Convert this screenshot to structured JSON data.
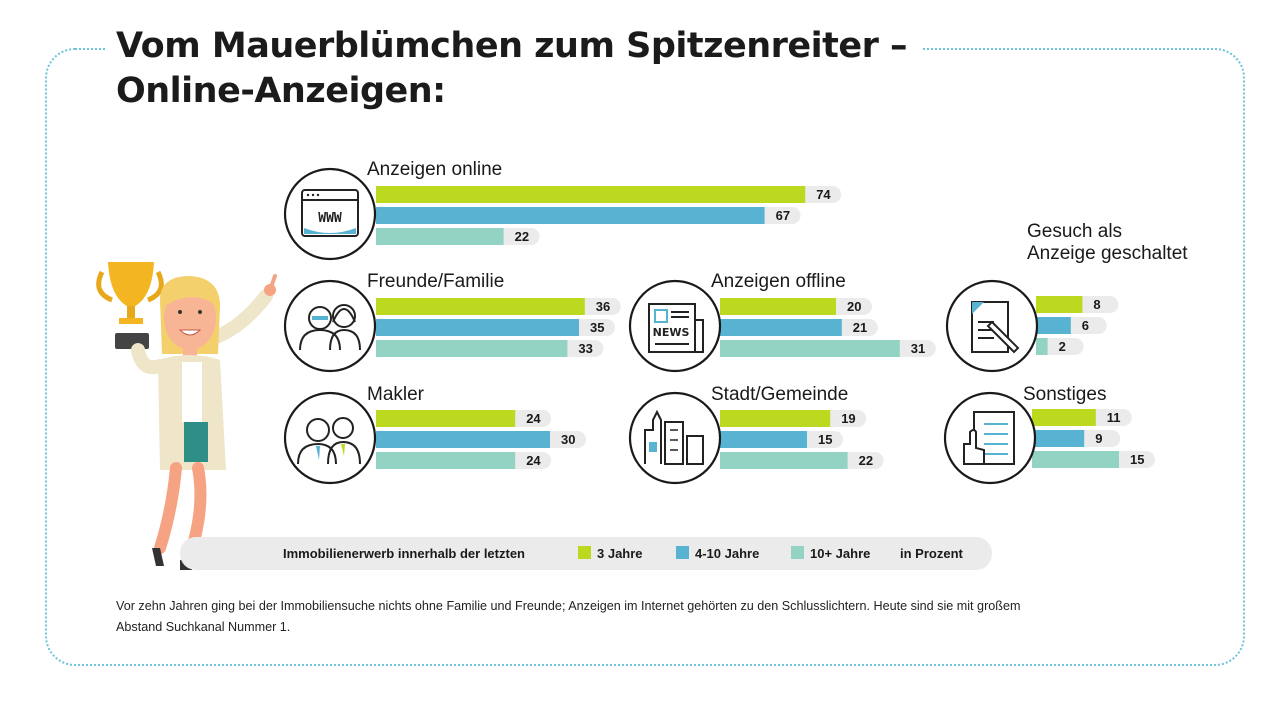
{
  "title_line1": "Vom Mauerblümchen zum Spitzenreiter –",
  "title_line2": "Online-Anzeigen:",
  "footnote_line1": "Vor zehn Jahren ging bei der Immobiliensuche nichts ohne Familie und Freunde; Anzeigen im Internet gehörten zu den Schlusslichtern. Heute sind sie mit großem",
  "footnote_line2": "Abstand Suchkanal Nummer 1.",
  "legend": {
    "intro": "Immobilienerwerb innerhalb der letzten",
    "unit": "in Prozent"
  },
  "colors": {
    "series_3": "#bcd81f",
    "series_4_10": "#58b2d2",
    "series_10plus": "#92d3c3",
    "track": "#ebebeb",
    "frame": "#6fc3d9"
  },
  "chart_data": {
    "type": "bar",
    "series": [
      {
        "name": "3 Jahre",
        "color": "#bcd81f"
      },
      {
        "name": "4-10 Jahre",
        "color": "#58b2d2"
      },
      {
        "name": "10+ Jahre",
        "color": "#92d3c3"
      }
    ],
    "categories": [
      {
        "label": "Anzeigen online",
        "values": [
          74,
          67,
          22
        ],
        "icon": "www-browser-icon"
      },
      {
        "label": "Freunde/Familie",
        "values": [
          36,
          35,
          33
        ],
        "icon": "friends-family-icon"
      },
      {
        "label": "Anzeigen offline",
        "values": [
          20,
          21,
          31
        ],
        "icon": "newspaper-icon"
      },
      {
        "label": "Gesuch als\nAnzeige geschaltet",
        "values": [
          8,
          6,
          2
        ],
        "icon": "document-pen-icon"
      },
      {
        "label": "Makler",
        "values": [
          24,
          30,
          24
        ],
        "icon": "businesspeople-icon"
      },
      {
        "label": "Stadt/Gemeinde",
        "values": [
          19,
          15,
          22
        ],
        "icon": "city-buildings-icon"
      },
      {
        "label": "Sonstiges",
        "values": [
          11,
          9,
          15
        ],
        "icon": "form-hand-icon"
      }
    ],
    "unit": "in Prozent"
  }
}
